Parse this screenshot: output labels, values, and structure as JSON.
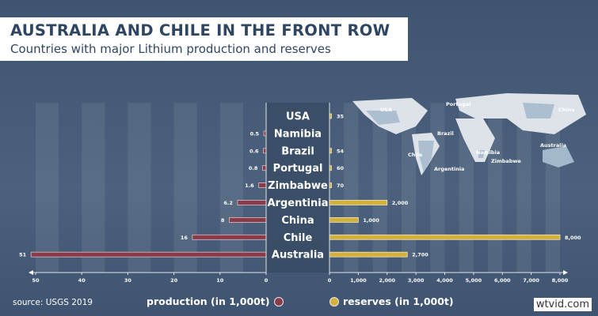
{
  "header": {
    "title": "AUSTRALIA AND CHILE IN THE FRONT ROW",
    "subtitle": "Countries with major Lithium production and reserves"
  },
  "footer": {
    "source": "source: USGS 2019",
    "legend_production": "production (in 1,000t)",
    "legend_reserves": "reserves (in 1,000t)",
    "watermark": "wtvid.com"
  },
  "colors": {
    "production": "#8a3a48",
    "reserves": "#d4b13d",
    "background": "#455b77"
  },
  "chart_data": {
    "type": "bar",
    "orientation": "horizontal-butterfly",
    "categories": [
      "USA",
      "Namibia",
      "Brazil",
      "Portugal",
      "Zimbabwe",
      "Argentinia",
      "China",
      "Chile",
      "Australia"
    ],
    "series": [
      {
        "name": "production (in 1,000t)",
        "values": [
          null,
          0.5,
          0.6,
          0.8,
          1.6,
          6.2,
          8,
          16,
          51
        ],
        "labels": [
          "",
          "0.5",
          "0.6",
          "0.8",
          "1.6",
          "6.2",
          "8",
          "16",
          "51"
        ],
        "xlim": [
          0,
          50
        ],
        "ticks": [
          "50",
          "40",
          "30",
          "20",
          "10",
          "0"
        ]
      },
      {
        "name": "reserves (in 1,000t)",
        "values": [
          35,
          null,
          54,
          60,
          70,
          2000,
          1000,
          8000,
          2700
        ],
        "labels": [
          "35",
          "",
          "54",
          "60",
          "70",
          "2,000",
          "1,000",
          "8,000",
          "2,700"
        ],
        "xlim": [
          0,
          8000
        ],
        "ticks": [
          "0",
          "1,000",
          "2,000",
          "3,000",
          "4,000",
          "5,000",
          "6,000",
          "7,000",
          "8,000"
        ]
      }
    ],
    "map_labels": [
      "USA",
      "Portugal",
      "China",
      "Brazil",
      "Chile",
      "Namibia",
      "Argentinia",
      "Zimbabwe",
      "Australia"
    ]
  }
}
